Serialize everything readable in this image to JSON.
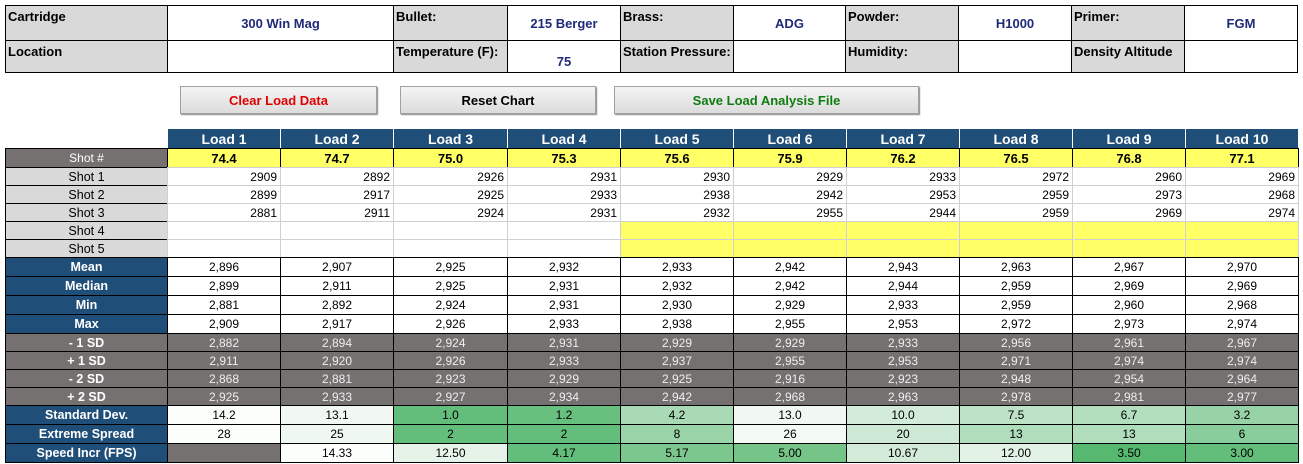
{
  "header": {
    "fields": [
      [
        {
          "label": "Cartridge",
          "value": "300 Win Mag"
        },
        {
          "label": "Bullet:",
          "value": "215 Berger"
        },
        {
          "label": "Brass:",
          "value": "ADG"
        },
        {
          "label": "Powder:",
          "value": "H1000"
        },
        {
          "label": "Primer:",
          "value": "FGM"
        }
      ],
      [
        {
          "label": "Location",
          "value": null
        },
        {
          "label": "Temperature (F):",
          "value": "75"
        },
        {
          "label": "Station Pressure:",
          "value": null
        },
        {
          "label": "Humidity:",
          "value": null
        },
        {
          "label": "Density Altitude",
          "value": null
        }
      ]
    ]
  },
  "buttons": [
    "Clear Load Data",
    "Reset Chart",
    "Save Load Analysis File"
  ],
  "table": {
    "columns": [
      "Load 1",
      "Load 2",
      "Load 3",
      "Load 4",
      "Load 5",
      "Load 6",
      "Load 7",
      "Load 8",
      "Load 9",
      "Load 10"
    ],
    "shot_number": {
      "label": "Shot #",
      "values": [
        "74.4",
        "74.7",
        "75.0",
        "75.3",
        "75.6",
        "75.9",
        "76.2",
        "76.5",
        "76.8",
        "77.1"
      ]
    },
    "rows": [
      {
        "label": "Shot 1",
        "values": [
          "2909",
          "2892",
          "2926",
          "2931",
          "2930",
          "2929",
          "2933",
          "2972",
          "2960",
          "2969"
        ]
      },
      {
        "label": "Shot 2",
        "values": [
          "2899",
          "2917",
          "2925",
          "2933",
          "2938",
          "2942",
          "2953",
          "2959",
          "2973",
          "2968"
        ]
      },
      {
        "label": "Shot 3",
        "values": [
          "2881",
          "2911",
          "2924",
          "2931",
          "2932",
          "2955",
          "2944",
          "2959",
          "2969",
          "2974"
        ]
      },
      {
        "label": "Shot 4",
        "values": [
          null,
          null,
          null,
          null,
          null,
          null,
          null,
          null,
          null,
          null
        ]
      },
      {
        "label": "Shot 5",
        "values": [
          null,
          null,
          null,
          null,
          null,
          null,
          null,
          null,
          null,
          null
        ]
      },
      {
        "label": "Mean",
        "values": [
          "2,896",
          "2,907",
          "2,925",
          "2,932",
          "2,933",
          "2,942",
          "2,943",
          "2,963",
          "2,967",
          "2,970"
        ]
      },
      {
        "label": "Median",
        "values": [
          "2,899",
          "2,911",
          "2,925",
          "2,931",
          "2,932",
          "2,942",
          "2,944",
          "2,959",
          "2,969",
          "2,969"
        ]
      },
      {
        "label": "Min",
        "values": [
          "2,881",
          "2,892",
          "2,924",
          "2,931",
          "2,930",
          "2,929",
          "2,933",
          "2,959",
          "2,960",
          "2,968"
        ]
      },
      {
        "label": "Max",
        "values": [
          "2,909",
          "2,917",
          "2,926",
          "2,933",
          "2,938",
          "2,955",
          "2,953",
          "2,972",
          "2,973",
          "2,974"
        ]
      },
      {
        "label": "- 1 SD",
        "values": [
          "2,882",
          "2,894",
          "2,924",
          "2,931",
          "2,929",
          "2,929",
          "2,933",
          "2,956",
          "2,961",
          "2,967"
        ]
      },
      {
        "label": "+ 1 SD",
        "values": [
          "2,911",
          "2,920",
          "2,926",
          "2,933",
          "2,937",
          "2,955",
          "2,953",
          "2,971",
          "2,974",
          "2,974"
        ]
      },
      {
        "label": "- 2 SD",
        "values": [
          "2,868",
          "2,881",
          "2,923",
          "2,929",
          "2,925",
          "2,916",
          "2,923",
          "2,948",
          "2,954",
          "2,964"
        ]
      },
      {
        "label": "+ 2 SD",
        "values": [
          "2,925",
          "2,933",
          "2,927",
          "2,934",
          "2,942",
          "2,968",
          "2,963",
          "2,978",
          "2,981",
          "2,977"
        ]
      },
      {
        "label": "Standard Dev.",
        "values": [
          "14.2",
          "13.1",
          "1.0",
          "1.2",
          "4.2",
          "13.0",
          "10.0",
          "7.5",
          "6.7",
          "3.2"
        ]
      },
      {
        "label": "Extreme Spread",
        "values": [
          "28",
          "25",
          "2",
          "2",
          "8",
          "26",
          "20",
          "13",
          "13",
          "6"
        ]
      },
      {
        "label": "Speed Incr (FPS)",
        "values": [
          null,
          "14.33",
          "12.50",
          "4.17",
          "5.17",
          "5.00",
          "10.67",
          "12.00",
          "3.50",
          "3.00"
        ]
      }
    ]
  }
}
